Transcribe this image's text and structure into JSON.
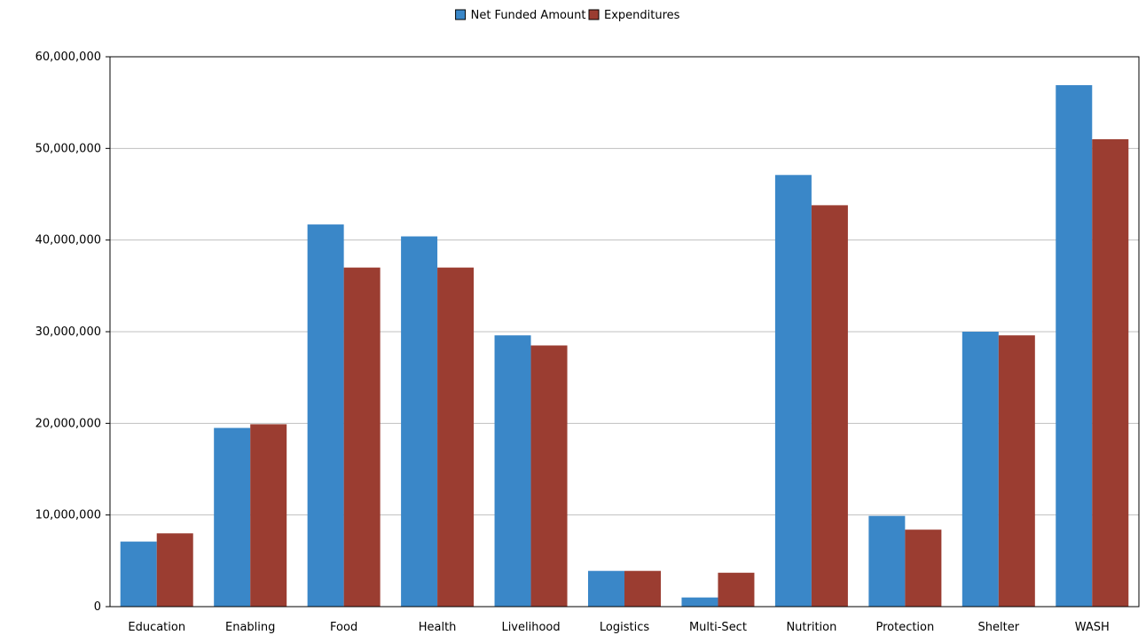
{
  "chart_data": {
    "type": "bar",
    "title": "",
    "xlabel": "",
    "ylabel": "",
    "categories": [
      "Education",
      "Enabling",
      "Food",
      "Health",
      "Livelihood",
      "Logistics",
      "Multi-Sect",
      "Nutrition",
      "Protection",
      "Shelter",
      "WASH"
    ],
    "series": [
      {
        "name": "Net Funded Amount",
        "color": "#3a87c8",
        "values": [
          7100000,
          19500000,
          41700000,
          40400000,
          29600000,
          3900000,
          1000000,
          47100000,
          9900000,
          30000000,
          56900000
        ]
      },
      {
        "name": "Expenditures",
        "color": "#9b3d31",
        "values": [
          8000000,
          19900000,
          37000000,
          37000000,
          28500000,
          3900000,
          3700000,
          43800000,
          8400000,
          29600000,
          51000000
        ]
      }
    ],
    "ylim": [
      0,
      60000000
    ],
    "yticks": [
      0,
      10000000,
      20000000,
      30000000,
      40000000,
      50000000,
      60000000
    ],
    "ytick_labels": [
      "0",
      "10,000,000",
      "20,000,000",
      "30,000,000",
      "40,000,000",
      "50,000,000",
      "60,000,000"
    ],
    "grid": true,
    "legend_position": "top-center"
  }
}
